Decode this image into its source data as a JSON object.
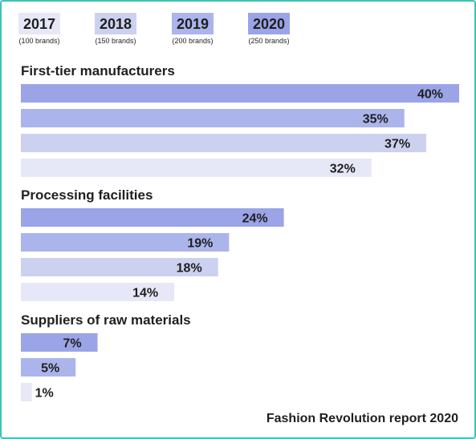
{
  "chart_data": {
    "type": "bar",
    "orientation": "horizontal",
    "legend": [
      {
        "year": "2017",
        "sub": "(100 brands)",
        "color": "#e6e8f7"
      },
      {
        "year": "2018",
        "sub": "(150 brands)",
        "color": "#cdd1f0"
      },
      {
        "year": "2019",
        "sub": "(200 brands)",
        "color": "#abb5eb"
      },
      {
        "year": "2020",
        "sub": "(250 brands)",
        "color": "#9aa4e6"
      }
    ],
    "groups": [
      {
        "title": "First-tier manufacturers",
        "bars": [
          {
            "series": "2020",
            "value": 40,
            "label": "40%"
          },
          {
            "series": "2019",
            "value": 35,
            "label": "35%"
          },
          {
            "series": "2018",
            "value": 37,
            "label": "37%"
          },
          {
            "series": "2017",
            "value": 32,
            "label": "32%"
          }
        ]
      },
      {
        "title": "Processing facilities",
        "bars": [
          {
            "series": "2020",
            "value": 24,
            "label": "24%"
          },
          {
            "series": "2019",
            "value": 19,
            "label": "19%"
          },
          {
            "series": "2018",
            "value": 18,
            "label": "18%"
          },
          {
            "series": "2017",
            "value": 14,
            "label": "14%"
          }
        ]
      },
      {
        "title": "Suppliers of raw materials",
        "bars": [
          {
            "series": "2020",
            "value": 7,
            "label": "7%"
          },
          {
            "series": "2019",
            "value": 5,
            "label": "5%"
          },
          {
            "series": "2017",
            "value": 1,
            "label": "1%"
          }
        ]
      }
    ],
    "xlim": [
      0,
      40
    ]
  },
  "source": "Fashion Revolution report 2020"
}
